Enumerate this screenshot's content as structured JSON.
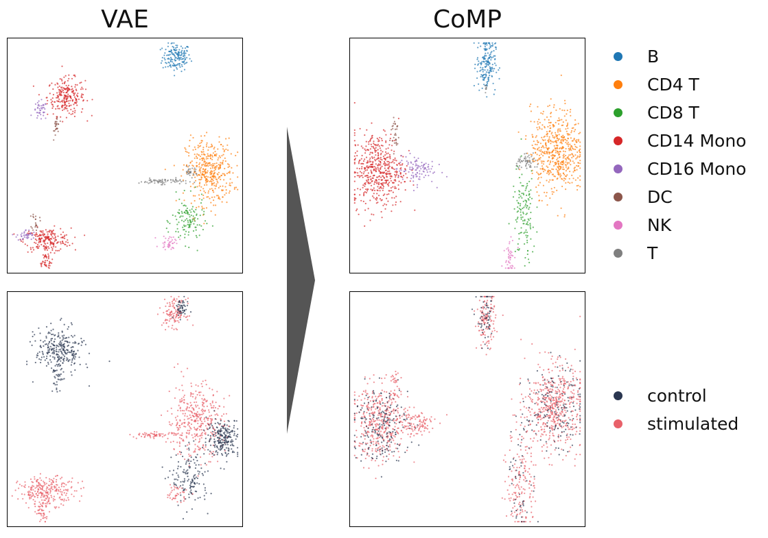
{
  "titles": {
    "left": "VAE",
    "right": "CoMP"
  },
  "legend_cell_type": [
    {
      "label": "B",
      "color": "#1f77b4"
    },
    {
      "label": "CD4 T",
      "color": "#ff7f0e"
    },
    {
      "label": "CD8 T",
      "color": "#2ca02c"
    },
    {
      "label": "CD14 Mono",
      "color": "#d62728"
    },
    {
      "label": "CD16 Mono",
      "color": "#9467bd"
    },
    {
      "label": "DC",
      "color": "#8c564b"
    },
    {
      "label": "NK",
      "color": "#e377c2"
    },
    {
      "label": "T",
      "color": "#7f7f7f"
    }
  ],
  "legend_condition": [
    {
      "label": "control",
      "color": "#2a3650"
    },
    {
      "label": "stimulated",
      "color": "#e8616a"
    }
  ],
  "arrow_color": "#555555",
  "chart_data": [
    {
      "type": "scatter",
      "method": "VAE",
      "coloring": "cell type",
      "grid": false,
      "axes": "hidden",
      "clusters": [
        {
          "group": "B",
          "center": [
            0.72,
            0.92
          ],
          "spread": [
            0.03,
            0.03
          ],
          "n": 160
        },
        {
          "group": "CD14 Mono",
          "center": [
            0.25,
            0.75
          ],
          "spread": [
            0.04,
            0.04
          ],
          "n": 240
        },
        {
          "group": "CD16 Mono",
          "center": [
            0.14,
            0.69
          ],
          "spread": [
            0.015,
            0.02
          ],
          "n": 40
        },
        {
          "group": "DC",
          "center": [
            0.21,
            0.63
          ],
          "spread": [
            0.006,
            0.025
          ],
          "n": 25
        },
        {
          "group": "CD14 Mono",
          "center": [
            0.17,
            0.14
          ],
          "spread": [
            0.05,
            0.025
          ],
          "n": 200
        },
        {
          "group": "CD16 Mono",
          "center": [
            0.08,
            0.16
          ],
          "spread": [
            0.02,
            0.012
          ],
          "n": 40
        },
        {
          "group": "DC",
          "center": [
            0.12,
            0.22
          ],
          "spread": [
            0.008,
            0.02
          ],
          "n": 20
        },
        {
          "group": "CD14 Mono",
          "center": [
            0.16,
            0.05
          ],
          "spread": [
            0.015,
            0.02
          ],
          "n": 40
        },
        {
          "group": "CD4 T",
          "center": [
            0.86,
            0.43
          ],
          "spread": [
            0.05,
            0.07
          ],
          "n": 400
        },
        {
          "group": "T",
          "center": [
            0.66,
            0.39
          ],
          "spread": [
            0.05,
            0.006
          ],
          "n": 70
        },
        {
          "group": "T",
          "center": [
            0.78,
            0.43
          ],
          "spread": [
            0.015,
            0.01
          ],
          "n": 30
        },
        {
          "group": "CD8 T",
          "center": [
            0.77,
            0.22
          ],
          "spread": [
            0.035,
            0.05
          ],
          "n": 120
        },
        {
          "group": "NK",
          "center": [
            0.69,
            0.13
          ],
          "spread": [
            0.02,
            0.015
          ],
          "n": 40
        }
      ]
    },
    {
      "type": "scatter",
      "method": "CoMP",
      "coloring": "cell type",
      "grid": false,
      "axes": "hidden",
      "clusters": [
        {
          "group": "B",
          "center": [
            0.58,
            0.89
          ],
          "spread": [
            0.02,
            0.06
          ],
          "n": 180
        },
        {
          "group": "T",
          "center": [
            0.58,
            0.79
          ],
          "spread": [
            0.005,
            0.01
          ],
          "n": 8
        },
        {
          "group": "CD14 Mono",
          "center": [
            0.12,
            0.44
          ],
          "spread": [
            0.055,
            0.08
          ],
          "n": 500
        },
        {
          "group": "CD16 Mono",
          "center": [
            0.28,
            0.44
          ],
          "spread": [
            0.04,
            0.03
          ],
          "n": 100
        },
        {
          "group": "DC",
          "center": [
            0.19,
            0.6
          ],
          "spread": [
            0.01,
            0.04
          ],
          "n": 30
        },
        {
          "group": "CD4 T",
          "center": [
            0.88,
            0.52
          ],
          "spread": [
            0.055,
            0.09
          ],
          "n": 550
        },
        {
          "group": "T",
          "center": [
            0.76,
            0.47
          ],
          "spread": [
            0.025,
            0.015
          ],
          "n": 60
        },
        {
          "group": "CD8 T",
          "center": [
            0.74,
            0.24
          ],
          "spread": [
            0.025,
            0.1
          ],
          "n": 130
        },
        {
          "group": "NK",
          "center": [
            0.68,
            0.08
          ],
          "spread": [
            0.012,
            0.045
          ],
          "n": 45
        }
      ]
    },
    {
      "type": "scatter",
      "method": "VAE",
      "coloring": "condition",
      "grid": false,
      "axes": "hidden",
      "clusters": [
        {
          "group": "stimulated",
          "center": [
            0.71,
            0.91
          ],
          "spread": [
            0.025,
            0.03
          ],
          "n": 120
        },
        {
          "group": "control",
          "center": [
            0.74,
            0.93
          ],
          "spread": [
            0.015,
            0.02
          ],
          "n": 50
        },
        {
          "group": "control",
          "center": [
            0.22,
            0.75
          ],
          "spread": [
            0.05,
            0.05
          ],
          "n": 280
        },
        {
          "group": "control",
          "center": [
            0.21,
            0.63
          ],
          "spread": [
            0.01,
            0.03
          ],
          "n": 30
        },
        {
          "group": "stimulated",
          "center": [
            0.17,
            0.15
          ],
          "spread": [
            0.06,
            0.03
          ],
          "n": 260
        },
        {
          "group": "stimulated",
          "center": [
            0.15,
            0.06
          ],
          "spread": [
            0.015,
            0.02
          ],
          "n": 40
        },
        {
          "group": "stimulated",
          "center": [
            0.8,
            0.45
          ],
          "spread": [
            0.06,
            0.08
          ],
          "n": 380
        },
        {
          "group": "stimulated",
          "center": [
            0.63,
            0.39
          ],
          "spread": [
            0.05,
            0.006
          ],
          "n": 60
        },
        {
          "group": "control",
          "center": [
            0.92,
            0.38
          ],
          "spread": [
            0.035,
            0.04
          ],
          "n": 220
        },
        {
          "group": "control",
          "center": [
            0.78,
            0.2
          ],
          "spread": [
            0.04,
            0.06
          ],
          "n": 140
        },
        {
          "group": "stimulated",
          "center": [
            0.72,
            0.14
          ],
          "spread": [
            0.025,
            0.02
          ],
          "n": 40
        }
      ]
    },
    {
      "type": "scatter",
      "method": "CoMP",
      "coloring": "condition",
      "grid": false,
      "axes": "hidden",
      "clusters": [
        {
          "group": "stimulated",
          "center": [
            0.58,
            0.88
          ],
          "spread": [
            0.02,
            0.06
          ],
          "n": 130
        },
        {
          "group": "control",
          "center": [
            0.58,
            0.88
          ],
          "spread": [
            0.02,
            0.06
          ],
          "n": 60
        },
        {
          "group": "stimulated",
          "center": [
            0.13,
            0.44
          ],
          "spread": [
            0.06,
            0.08
          ],
          "n": 420
        },
        {
          "group": "control",
          "center": [
            0.13,
            0.44
          ],
          "spread": [
            0.06,
            0.08
          ],
          "n": 200
        },
        {
          "group": "stimulated",
          "center": [
            0.28,
            0.44
          ],
          "spread": [
            0.04,
            0.03
          ],
          "n": 90
        },
        {
          "group": "stimulated",
          "center": [
            0.19,
            0.6
          ],
          "spread": [
            0.01,
            0.04
          ],
          "n": 30
        },
        {
          "group": "stimulated",
          "center": [
            0.87,
            0.51
          ],
          "spread": [
            0.06,
            0.09
          ],
          "n": 520
        },
        {
          "group": "control",
          "center": [
            0.87,
            0.51
          ],
          "spread": [
            0.06,
            0.09
          ],
          "n": 160
        },
        {
          "group": "stimulated",
          "center": [
            0.73,
            0.2
          ],
          "spread": [
            0.03,
            0.12
          ],
          "n": 170
        },
        {
          "group": "control",
          "center": [
            0.73,
            0.2
          ],
          "spread": [
            0.03,
            0.12
          ],
          "n": 50
        }
      ]
    }
  ]
}
